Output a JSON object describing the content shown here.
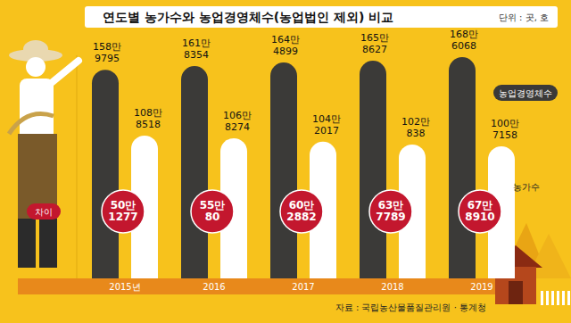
{
  "chart_data": {
    "type": "bar",
    "title": "연도별 농가수와 농업경영체수(농업법인 제외) 비교",
    "unit": "단위 : 곳, 호",
    "source": "자료 : 국립농산물품질관리원 · 통계청",
    "categories": [
      "2015년",
      "2016",
      "2017",
      "2018",
      "2019"
    ],
    "series": [
      {
        "name": "농업경영체수",
        "color": "#3b3a38",
        "values": [
          1589795,
          1618354,
          1644899,
          1658627,
          1686068
        ],
        "value_labels": [
          "158만 9795",
          "161만 8354",
          "164만 4899",
          "165만 8627",
          "168만 6068"
        ]
      },
      {
        "name": "농가수",
        "color": "#ffffff",
        "values": [
          1088518,
          1068274,
          1042017,
          1020838,
          1007158
        ],
        "value_labels": [
          "108만 8518",
          "106만 8274",
          "104만 2017",
          "102만 838",
          "100만 7158"
        ]
      }
    ],
    "difference": {
      "name": "차이",
      "color": "#c3172e",
      "values": [
        501277,
        550080,
        602882,
        637789,
        678910
      ],
      "value_labels": [
        "50만 1277",
        "55만 80",
        "60만 2882",
        "63만 7789",
        "67만 8910"
      ]
    },
    "ylim": [
      0,
      1700000
    ],
    "yticks": [],
    "tick_labels": false,
    "data_labels": true
  }
}
